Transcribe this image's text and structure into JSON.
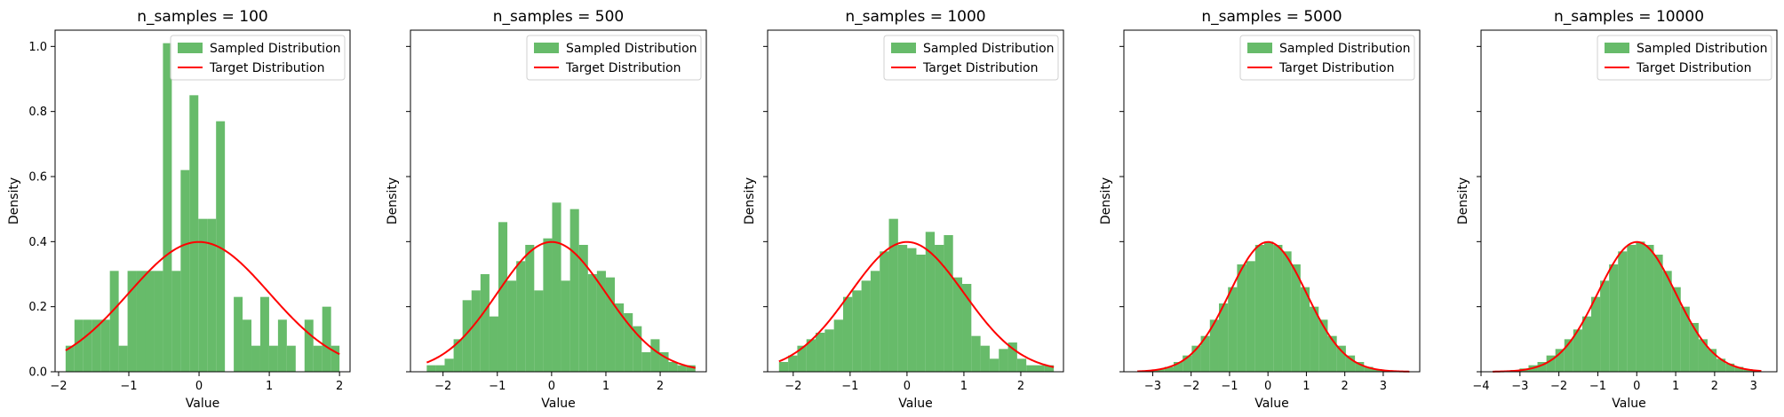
{
  "colors": {
    "hist": "#4caf50",
    "curve": "#ff0000",
    "frame": "#000000"
  },
  "chart_data": [
    {
      "type": "bar",
      "title": "n_samples = 100",
      "xlabel": "Value",
      "ylabel": "Density",
      "xlim": [
        -2.05,
        2.15
      ],
      "ylim": [
        0,
        1.05
      ],
      "xticks": [
        -2,
        -1,
        0,
        1,
        2
      ],
      "yticks": [
        0.0,
        0.2,
        0.4,
        0.6,
        0.8,
        1.0
      ],
      "ytick_labels": [
        "0.0",
        "0.2",
        "0.4",
        "0.6",
        "0.8",
        "1.0"
      ],
      "bin_edges": [
        -1.9,
        -1.774,
        -1.648,
        -1.522,
        -1.396,
        -1.27,
        -1.144,
        -1.018,
        -0.892,
        -0.766,
        -0.64,
        -0.514,
        -0.388,
        -0.262,
        -0.136,
        -0.01,
        0.116,
        0.242,
        0.368,
        0.494,
        0.62,
        0.746,
        0.872,
        0.998,
        1.124,
        1.25,
        1.376,
        1.502,
        1.628,
        1.754,
        1.88,
        2.0
      ],
      "values": [
        0.08,
        0.16,
        0.16,
        0.16,
        0.16,
        0.31,
        0.08,
        0.31,
        0.31,
        0.31,
        0.31,
        1.01,
        0.31,
        0.62,
        0.85,
        0.47,
        0.47,
        0.77,
        0.0,
        0.23,
        0.16,
        0.08,
        0.23,
        0.08,
        0.16,
        0.08,
        0.0,
        0.16,
        0.08,
        0.2,
        0.08
      ],
      "curve": {
        "name": "Target Distribution",
        "x_range": [
          -1.9,
          2.0
        ]
      },
      "legend": [
        "Sampled Distribution",
        "Target Distribution"
      ],
      "legend_position": "top-right",
      "show_yticklabels": true
    },
    {
      "type": "bar",
      "title": "n_samples = 500",
      "xlabel": "Value",
      "ylabel": "Density",
      "xlim": [
        -2.6,
        2.85
      ],
      "ylim": [
        0,
        1.05
      ],
      "xticks": [
        -2,
        -1,
        0,
        1,
        2
      ],
      "yticks": [
        0.0,
        0.2,
        0.4,
        0.6,
        0.8,
        1.0
      ],
      "bin_edges": [
        -2.3,
        -2.135,
        -1.97,
        -1.805,
        -1.64,
        -1.475,
        -1.31,
        -1.145,
        -0.98,
        -0.815,
        -0.65,
        -0.485,
        -0.32,
        -0.155,
        0.01,
        0.175,
        0.34,
        0.505,
        0.67,
        0.835,
        1.0,
        1.165,
        1.33,
        1.495,
        1.66,
        1.825,
        1.99,
        2.155,
        2.32,
        2.485,
        2.65
      ],
      "values": [
        0.02,
        0.02,
        0.04,
        0.1,
        0.22,
        0.25,
        0.3,
        0.17,
        0.46,
        0.28,
        0.34,
        0.39,
        0.25,
        0.41,
        0.52,
        0.28,
        0.5,
        0.39,
        0.3,
        0.31,
        0.29,
        0.21,
        0.18,
        0.14,
        0.06,
        0.1,
        0.06,
        0.03,
        0.02,
        0.02
      ],
      "curve": {
        "name": "Target Distribution",
        "x_range": [
          -2.3,
          2.65
        ]
      },
      "legend": [
        "Sampled Distribution",
        "Target Distribution"
      ],
      "legend_position": "top-right",
      "show_yticklabels": false
    },
    {
      "type": "bar",
      "title": "n_samples = 1000",
      "xlabel": "Value",
      "ylabel": "Density",
      "xlim": [
        -2.45,
        2.75
      ],
      "ylim": [
        0,
        1.05
      ],
      "xticks": [
        -2,
        -1,
        0,
        1,
        2
      ],
      "yticks": [
        0.0,
        0.2,
        0.4,
        0.6,
        0.8,
        1.0
      ],
      "bin_edges": [
        -2.25,
        -2.089,
        -1.928,
        -1.767,
        -1.606,
        -1.445,
        -1.284,
        -1.123,
        -0.962,
        -0.801,
        -0.64,
        -0.479,
        -0.318,
        -0.157,
        0.004,
        0.165,
        0.326,
        0.487,
        0.648,
        0.809,
        0.97,
        1.131,
        1.292,
        1.453,
        1.614,
        1.775,
        1.936,
        2.097,
        2.258,
        2.419,
        2.58
      ],
      "values": [
        0.03,
        0.05,
        0.08,
        0.1,
        0.12,
        0.13,
        0.16,
        0.23,
        0.25,
        0.28,
        0.31,
        0.37,
        0.47,
        0.39,
        0.38,
        0.36,
        0.43,
        0.39,
        0.42,
        0.29,
        0.27,
        0.11,
        0.08,
        0.04,
        0.07,
        0.09,
        0.04,
        0.02,
        0.02,
        0.02
      ],
      "curve": {
        "name": "Target Distribution",
        "x_range": [
          -2.25,
          2.58
        ]
      },
      "legend": [
        "Sampled Distribution",
        "Target Distribution"
      ],
      "legend_position": "top-right",
      "show_yticklabels": false
    },
    {
      "type": "bar",
      "title": "n_samples = 5000",
      "xlabel": "Value",
      "ylabel": "Density",
      "xlim": [
        -3.75,
        3.95
      ],
      "ylim": [
        0,
        1.05
      ],
      "xticks": [
        -3,
        -2,
        -1,
        0,
        1,
        2,
        3
      ],
      "yticks": [
        0.0,
        0.2,
        0.4,
        0.6,
        0.8,
        1.0
      ],
      "bin_edges": [
        -3.4,
        -3.164,
        -2.928,
        -2.692,
        -2.456,
        -2.22,
        -1.984,
        -1.748,
        -1.512,
        -1.276,
        -1.04,
        -0.804,
        -0.568,
        -0.332,
        -0.096,
        0.14,
        0.376,
        0.612,
        0.848,
        1.084,
        1.32,
        1.556,
        1.792,
        2.028,
        2.264,
        2.5,
        2.736,
        2.972,
        3.208,
        3.444,
        3.68
      ],
      "values": [
        0.0,
        0.004,
        0.008,
        0.015,
        0.03,
        0.05,
        0.08,
        0.11,
        0.16,
        0.21,
        0.26,
        0.33,
        0.34,
        0.39,
        0.4,
        0.39,
        0.37,
        0.33,
        0.26,
        0.2,
        0.16,
        0.11,
        0.08,
        0.05,
        0.03,
        0.015,
        0.008,
        0.004,
        0.002,
        0.001
      ],
      "curve": {
        "name": "Target Distribution",
        "x_range": [
          -3.4,
          3.68
        ]
      },
      "legend": [
        "Sampled Distribution",
        "Target Distribution"
      ],
      "legend_position": "top-right",
      "show_yticklabels": false
    },
    {
      "type": "bar",
      "title": "n_samples = 10000",
      "xlabel": "Value",
      "ylabel": "Density",
      "xlim": [
        -4.0,
        3.6
      ],
      "ylim": [
        0,
        1.05
      ],
      "xticks": [
        -4,
        -3,
        -2,
        -1,
        0,
        1,
        2,
        3
      ],
      "yticks": [
        0.0,
        0.2,
        0.4,
        0.6,
        0.8,
        1.0
      ],
      "bin_edges": [
        -3.7,
        -3.47,
        -3.24,
        -3.01,
        -2.78,
        -2.55,
        -2.32,
        -2.09,
        -1.86,
        -1.63,
        -1.4,
        -1.17,
        -0.94,
        -0.71,
        -0.48,
        -0.25,
        -0.02,
        0.21,
        0.44,
        0.67,
        0.9,
        1.13,
        1.36,
        1.59,
        1.82,
        2.05,
        2.28,
        2.51,
        2.74,
        2.97,
        3.2
      ],
      "values": [
        0.002,
        0.003,
        0.005,
        0.01,
        0.02,
        0.03,
        0.05,
        0.07,
        0.1,
        0.13,
        0.17,
        0.23,
        0.28,
        0.33,
        0.37,
        0.39,
        0.4,
        0.39,
        0.36,
        0.31,
        0.26,
        0.2,
        0.15,
        0.1,
        0.07,
        0.04,
        0.025,
        0.015,
        0.008,
        0.004
      ],
      "curve": {
        "name": "Target Distribution",
        "x_range": [
          -3.7,
          3.2
        ]
      },
      "legend": [
        "Sampled Distribution",
        "Target Distribution"
      ],
      "legend_position": "top-right",
      "show_yticklabels": false
    }
  ]
}
